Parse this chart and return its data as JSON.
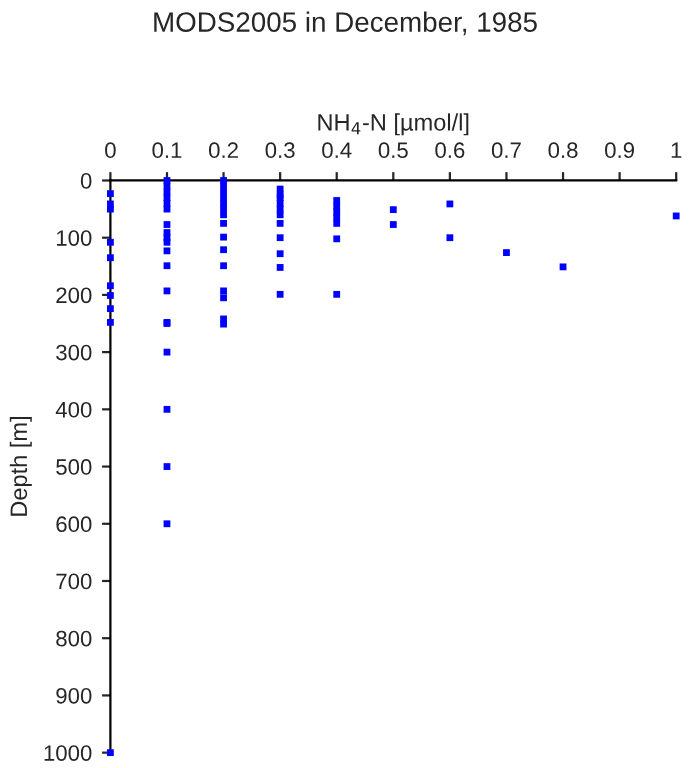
{
  "chart_data": {
    "type": "scatter",
    "title": "MODS2005 in December, 1985",
    "xlabel": "NH$_{4}$-N [µmol/l]",
    "ylabel": "Depth [m]",
    "x": [
      0,
      0,
      0,
      0,
      0,
      0,
      0,
      0,
      0,
      0,
      0.1,
      0.1,
      0.1,
      0.1,
      0.1,
      0.1,
      0.1,
      0.1,
      0.1,
      0.1,
      0.1,
      0.1,
      0.1,
      0.1,
      0.1,
      0.1,
      0.1,
      0.1,
      0.1,
      0.2,
      0.2,
      0.2,
      0.2,
      0.2,
      0.2,
      0.2,
      0.2,
      0.2,
      0.2,
      0.2,
      0.2,
      0.2,
      0.2,
      0.2,
      0.3,
      0.3,
      0.3,
      0.3,
      0.3,
      0.3,
      0.3,
      0.3,
      0.3,
      0.3,
      0.3,
      0.4,
      0.4,
      0.4,
      0.4,
      0.4,
      0.4,
      0.4,
      0.5,
      0.5,
      0.6,
      0.6,
      0.7,
      0.8,
      1
    ],
    "values": [
      23,
      41,
      50,
      108,
      135,
      184,
      201,
      224,
      248,
      1000,
      0,
      10,
      20,
      30,
      40,
      50,
      77,
      91,
      100,
      108,
      123,
      149,
      193,
      248,
      250,
      300,
      400,
      500,
      600,
      0,
      10,
      20,
      30,
      40,
      50,
      60,
      75,
      99,
      121,
      149,
      193,
      205,
      242,
      251,
      15,
      25,
      30,
      40,
      50,
      60,
      75,
      100,
      128,
      152,
      199,
      35,
      45,
      55,
      65,
      75,
      102,
      199,
      51,
      77,
      41,
      100,
      126,
      151,
      62
    ],
    "color": "#0000ff",
    "marker": "square",
    "xlim": [
      0,
      1
    ],
    "ylim": [
      1000,
      0
    ],
    "xticks": [
      0,
      0.1,
      0.2,
      0.3,
      0.4,
      0.5,
      0.6,
      0.7,
      0.8,
      0.9,
      1
    ],
    "yticks": [
      0,
      100,
      200,
      300,
      400,
      500,
      600,
      700,
      800,
      900,
      1000
    ],
    "grid": false
  }
}
